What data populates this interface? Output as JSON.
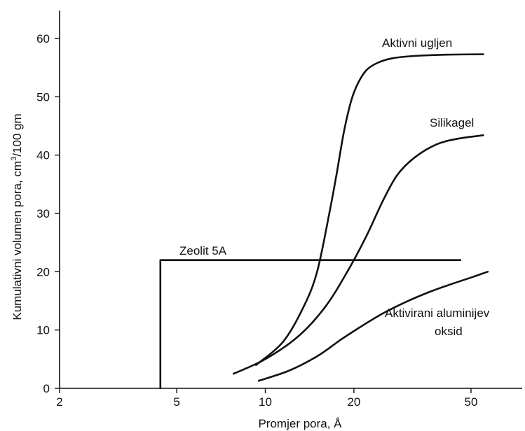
{
  "chart_data": {
    "type": "line",
    "xlabel": "Promjer pora, Å",
    "ylabel_main": "Kumulativni volumen pora, cm",
    "ylabel_sup": "3",
    "ylabel_tail": "/100 gm",
    "x_scale": "log",
    "xlim": [
      2,
      65
    ],
    "ylim": [
      0,
      65
    ],
    "x_ticks": [
      2,
      5,
      10,
      20,
      50
    ],
    "y_ticks": [
      0,
      10,
      20,
      30,
      40,
      50,
      60
    ],
    "grid": false,
    "series": [
      {
        "name": "Aktivni ugljen",
        "x": [
          9.3,
          11.5,
          13.5,
          15,
          16.5,
          17.5,
          18.5,
          19.5,
          20.5,
          22,
          24,
          27,
          32,
          40,
          55
        ],
        "y": [
          4,
          8,
          14,
          20,
          30,
          37,
          44,
          49,
          52,
          54.5,
          55.8,
          56.6,
          57,
          57.2,
          57.3
        ]
      },
      {
        "name": "Silikagel",
        "x": [
          7.8,
          10,
          13,
          16,
          19,
          22,
          25,
          28,
          32,
          38,
          45,
          55
        ],
        "y": [
          2.5,
          5,
          9,
          14,
          20,
          26,
          32,
          36.5,
          39.5,
          41.8,
          42.8,
          43.4
        ]
      },
      {
        "name": "Zeolit 5A",
        "x": [
          4.4,
          4.4,
          46
        ],
        "y": [
          0,
          22,
          22
        ]
      },
      {
        "name": "Aktivirani aluminijev oksid",
        "x": [
          9.5,
          12,
          15,
          18,
          21,
          25,
          30,
          36,
          43,
          50,
          57
        ],
        "y": [
          1.3,
          3,
          5.5,
          8.3,
          10.5,
          12.8,
          14.8,
          16.5,
          17.9,
          19,
          20
        ]
      }
    ],
    "labels": {
      "aktivni_ugljen": "Aktivni ugljen",
      "silikagel": "Silikagel",
      "zeolit": "Zeolit 5A",
      "alu_line1": "Aktivirani aluminijev",
      "alu_line2": "oksid"
    }
  }
}
